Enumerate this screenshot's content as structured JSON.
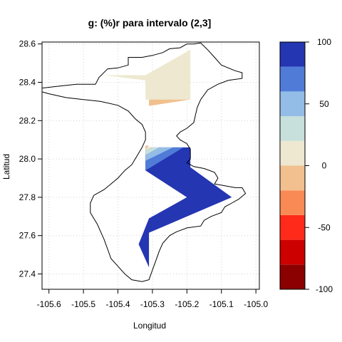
{
  "chart_data": {
    "type": "heatmap",
    "title": "g:   (%)r para intervalo (2,3]",
    "xlabel": "Longitud",
    "ylabel": "Latitud",
    "xlim": [
      -105.62,
      -104.99
    ],
    "ylim": [
      27.32,
      28.61
    ],
    "x_ticks": [
      "-105.6",
      "-105.5",
      "-105.4",
      "-105.3",
      "-105.2",
      "-105.1",
      "-105.0"
    ],
    "y_ticks": [
      "27.4",
      "27.6",
      "27.8",
      "28.0",
      "28.2",
      "28.4",
      "28.6"
    ],
    "grid": true,
    "legend": {
      "placement": "right",
      "range": [
        -100,
        100
      ],
      "ticks": [
        "-100",
        "-50",
        "0",
        "50",
        "100"
      ],
      "bins": [
        {
          "from": -100,
          "to": -80,
          "color": "#8b0000"
        },
        {
          "from": -80,
          "to": -60,
          "color": "#cd0000"
        },
        {
          "from": -60,
          "to": -40,
          "color": "#ff2a1a"
        },
        {
          "from": -40,
          "to": -20,
          "color": "#fa8a55"
        },
        {
          "from": -20,
          "to": 0,
          "color": "#f2c08e"
        },
        {
          "from": 0,
          "to": 20,
          "color": "#ede8cf"
        },
        {
          "from": 20,
          "to": 40,
          "color": "#c7e0db"
        },
        {
          "from": 40,
          "to": 60,
          "color": "#93bde6"
        },
        {
          "from": 60,
          "to": 80,
          "color": "#507cd8"
        },
        {
          "from": 80,
          "to": 100,
          "color": "#2436b2"
        }
      ]
    },
    "regions": [
      {
        "name": "north-cream",
        "value": 10,
        "color": "#ede8cf",
        "points": [
          [
            -105.44,
            28.437
          ],
          [
            -105.32,
            28.437
          ],
          [
            -105.19,
            28.57
          ],
          [
            -105.19,
            28.31
          ],
          [
            -105.32,
            28.31
          ],
          [
            -105.32,
            28.41
          ]
        ]
      },
      {
        "name": "north-orange",
        "value": -10,
        "color": "#f2c08e",
        "points": [
          [
            -105.31,
            28.31
          ],
          [
            -105.19,
            28.31
          ],
          [
            -105.31,
            28.277
          ]
        ]
      },
      {
        "name": "south-blue",
        "value": 90,
        "color": "#2436b2",
        "points": [
          [
            -105.32,
            27.94
          ],
          [
            -105.32,
            28.06
          ],
          [
            -105.19,
            28.06
          ],
          [
            -105.19,
            27.957
          ],
          [
            -105.07,
            27.8
          ],
          [
            -105.31,
            27.615
          ],
          [
            -105.31,
            27.434
          ],
          [
            -105.34,
            27.555
          ],
          [
            -105.31,
            27.69
          ],
          [
            -105.2,
            27.8
          ]
        ]
      },
      {
        "name": "south-light-blue",
        "value": 70,
        "color": "#507cd8",
        "points": [
          [
            -105.32,
            27.94
          ],
          [
            -105.32,
            27.99
          ],
          [
            -105.24,
            28.06
          ],
          [
            -105.21,
            28.06
          ]
        ]
      },
      {
        "name": "south-sky",
        "value": 50,
        "color": "#93bde6",
        "points": [
          [
            -105.32,
            27.99
          ],
          [
            -105.32,
            28.02
          ],
          [
            -105.28,
            28.06
          ],
          [
            -105.24,
            28.06
          ]
        ]
      },
      {
        "name": "south-teal",
        "value": 30,
        "color": "#c7e0db",
        "points": [
          [
            -105.32,
            28.02
          ],
          [
            -105.32,
            28.045
          ],
          [
            -105.3,
            28.06
          ],
          [
            -105.28,
            28.06
          ]
        ]
      },
      {
        "name": "south-cream",
        "value": 10,
        "color": "#ede8cf",
        "points": [
          [
            -105.32,
            28.045
          ],
          [
            -105.32,
            28.06
          ],
          [
            -105.3,
            28.06
          ]
        ]
      },
      {
        "name": "south-orange",
        "value": -10,
        "color": "#f2c08e",
        "points": [
          [
            -105.32,
            28.05
          ],
          [
            -105.32,
            28.07
          ],
          [
            -105.31,
            28.07
          ]
        ]
      }
    ],
    "boundary": [
      [
        -105.62,
        28.37
      ],
      [
        -105.57,
        28.38
      ],
      [
        -105.52,
        28.39
      ],
      [
        -105.465,
        28.39
      ],
      [
        -105.455,
        28.425
      ],
      [
        -105.43,
        28.47
      ],
      [
        -105.4,
        28.475
      ],
      [
        -105.37,
        28.49
      ],
      [
        -105.37,
        28.53
      ],
      [
        -105.33,
        28.53
      ],
      [
        -105.3,
        28.54
      ],
      [
        -105.27,
        28.555
      ],
      [
        -105.25,
        28.575
      ],
      [
        -105.22,
        28.58
      ],
      [
        -105.2,
        28.6
      ],
      [
        -105.18,
        28.6
      ],
      [
        -105.16,
        28.605
      ],
      [
        -105.14,
        28.57
      ],
      [
        -105.12,
        28.53
      ],
      [
        -105.1,
        28.49
      ],
      [
        -105.06,
        28.46
      ],
      [
        -105.04,
        28.45
      ],
      [
        -105.04,
        28.42
      ],
      [
        -105.08,
        28.41
      ],
      [
        -105.11,
        28.39
      ],
      [
        -105.14,
        28.36
      ],
      [
        -105.16,
        28.31
      ],
      [
        -105.17,
        28.27
      ],
      [
        -105.175,
        28.23
      ],
      [
        -105.18,
        28.19
      ],
      [
        -105.2,
        28.16
      ],
      [
        -105.22,
        28.14
      ],
      [
        -105.23,
        28.12
      ],
      [
        -105.22,
        28.1
      ],
      [
        -105.2,
        28.08
      ],
      [
        -105.19,
        28.05
      ],
      [
        -105.19,
        28.0
      ],
      [
        -105.2,
        27.98
      ],
      [
        -105.18,
        27.96
      ],
      [
        -105.15,
        27.95
      ],
      [
        -105.12,
        27.93
      ],
      [
        -105.11,
        27.9
      ],
      [
        -105.12,
        27.87
      ],
      [
        -105.09,
        27.86
      ],
      [
        -105.06,
        27.85
      ],
      [
        -105.04,
        27.85
      ],
      [
        -105.03,
        27.82
      ],
      [
        -105.05,
        27.79
      ],
      [
        -105.07,
        27.77
      ],
      [
        -105.09,
        27.75
      ],
      [
        -105.1,
        27.72
      ],
      [
        -105.13,
        27.7
      ],
      [
        -105.15,
        27.68
      ],
      [
        -105.16,
        27.65
      ],
      [
        -105.2,
        27.64
      ],
      [
        -105.23,
        27.62
      ],
      [
        -105.25,
        27.6
      ],
      [
        -105.27,
        27.56
      ],
      [
        -105.28,
        27.52
      ],
      [
        -105.29,
        27.47
      ],
      [
        -105.3,
        27.42
      ],
      [
        -105.31,
        27.37
      ],
      [
        -105.33,
        27.36
      ],
      [
        -105.36,
        27.37
      ],
      [
        -105.38,
        27.4
      ],
      [
        -105.4,
        27.44
      ],
      [
        -105.42,
        27.48
      ],
      [
        -105.43,
        27.53
      ],
      [
        -105.44,
        27.58
      ],
      [
        -105.45,
        27.62
      ],
      [
        -105.46,
        27.66
      ],
      [
        -105.47,
        27.69
      ],
      [
        -105.48,
        27.72
      ],
      [
        -105.48,
        27.77
      ],
      [
        -105.47,
        27.81
      ],
      [
        -105.44,
        27.84
      ],
      [
        -105.42,
        27.87
      ],
      [
        -105.4,
        27.9
      ],
      [
        -105.38,
        27.94
      ],
      [
        -105.36,
        27.97
      ],
      [
        -105.35,
        28.0
      ],
      [
        -105.34,
        28.03
      ],
      [
        -105.33,
        28.06
      ],
      [
        -105.32,
        28.1
      ],
      [
        -105.32,
        28.14
      ],
      [
        -105.33,
        28.18
      ],
      [
        -105.35,
        28.21
      ],
      [
        -105.37,
        28.25
      ],
      [
        -105.4,
        28.28
      ],
      [
        -105.45,
        28.3
      ],
      [
        -105.5,
        28.31
      ],
      [
        -105.55,
        28.32
      ],
      [
        -105.6,
        28.34
      ],
      [
        -105.62,
        28.35
      ]
    ]
  }
}
